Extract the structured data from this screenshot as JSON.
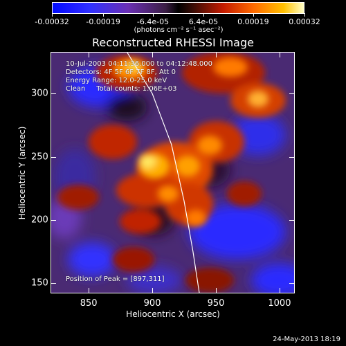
{
  "colorbar": {
    "tick_labels": [
      "-0.00032",
      "-0.00019",
      "-6.4e-05",
      "6.4e-05",
      "0.00019",
      "0.00032"
    ],
    "tick_values": [
      -0.00032,
      -0.00019,
      -6.4e-05,
      6.4e-05,
      0.00019,
      0.00032
    ],
    "range": [
      -0.00032,
      0.00032
    ],
    "units": "(photons cm⁻² s⁻¹ asec⁻²)",
    "colors": [
      "#000bff",
      "#6a2fb4",
      "#000000",
      "#c51b00",
      "#ff6a00",
      "#ffffc8"
    ]
  },
  "chart_data": {
    "type": "heatmap",
    "title": "Reconstructed RHESSI Image",
    "xlabel": "Heliocentric X (arcsec)",
    "ylabel": "Heliocentric Y (arcsec)",
    "xlim": [
      820,
      1012
    ],
    "ylim": [
      142,
      333
    ],
    "x_ticks": [
      850,
      900,
      950,
      1000
    ],
    "y_ticks": [
      150,
      200,
      250,
      300
    ],
    "annotations": {
      "time": "10-Jul-2003 04:11:36.000 to 04:12:48.000",
      "detectors": "Detectors: 4F 5F 6F 7F 8F, Att 0",
      "energy": "Energy Range: 12.0-25.0 keV",
      "clean": "Clean     Total counts: 1.06E+03",
      "peak": "Position of Peak = [897,311]"
    },
    "limb_curve": [
      [
        880,
        333
      ],
      [
        900,
        300
      ],
      [
        915,
        260
      ],
      [
        925,
        215
      ],
      [
        932,
        175
      ],
      [
        937,
        142
      ]
    ],
    "peak_position": [
      897,
      311
    ]
  },
  "footer": {
    "timestamp": "24-May-2013 18:19"
  }
}
